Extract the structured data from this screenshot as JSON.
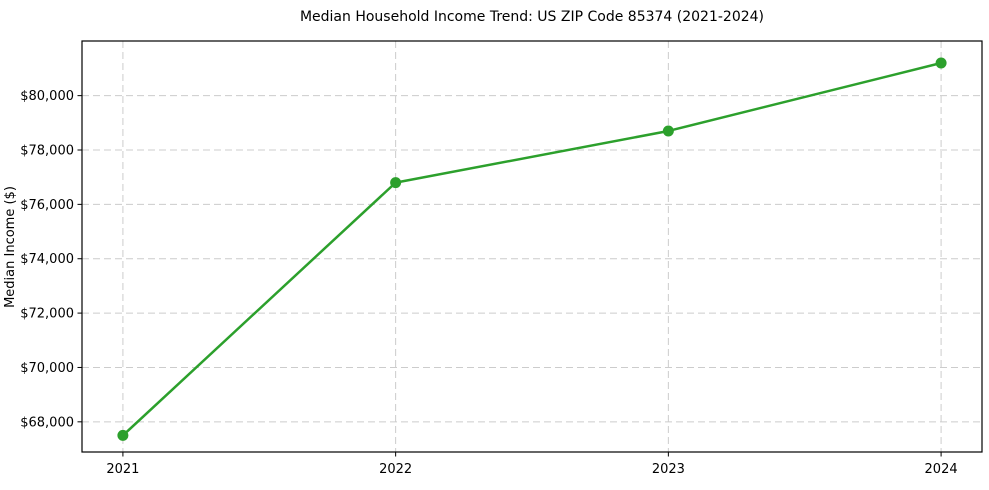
{
  "chart_data": {
    "type": "line",
    "title": "Median Household Income Trend: US ZIP Code 85374 (2021-2024)",
    "xlabel": "",
    "ylabel": "Median Income ($)",
    "x": [
      2021,
      2022,
      2023,
      2024
    ],
    "series": [
      {
        "name": "Median Household Income",
        "values": [
          67500,
          76800,
          78700,
          81200
        ]
      }
    ],
    "x_ticks": [
      2021,
      2022,
      2023,
      2024
    ],
    "x_tick_labels": [
      "2021",
      "2022",
      "2023",
      "2024"
    ],
    "y_ticks": [
      68000,
      70000,
      72000,
      74000,
      76000,
      78000,
      80000
    ],
    "y_tick_labels": [
      "$68,000",
      "$70,000",
      "$72,000",
      "$74,000",
      "$76,000",
      "$78,000",
      "$80,000"
    ],
    "xlim": [
      2020.85,
      2024.15
    ],
    "ylim": [
      66890,
      82010
    ],
    "grid": true,
    "grid_style": "dashed",
    "legend": "none",
    "colors": {
      "line": "#2ca02c",
      "marker": "#2ca02c",
      "grid": "#cccccc",
      "spine": "#000000",
      "text": "#000000",
      "background": "#ffffff"
    }
  }
}
